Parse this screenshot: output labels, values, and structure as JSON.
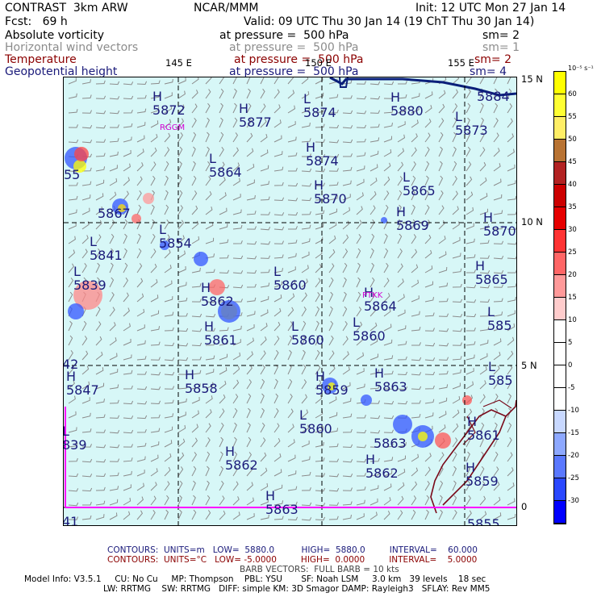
{
  "header": {
    "title_left": "CONTRAST  3km ARW",
    "title_center": "NCAR/MMM",
    "init": "Init: 12 UTC Mon 27 Jan 14",
    "fcst": "Fcst:   69 h",
    "valid": "Valid: 09 UTC Thu 30 Jan 14 (19 ChT Thu 30 Jan 14)"
  },
  "fields": [
    {
      "name": "Absolute vorticity",
      "level": "at pressure =  500 hPa",
      "sm": "sm= 2",
      "color": "#000000"
    },
    {
      "name": "Horizontal wind vectors",
      "level": "at pressure =  500 hPa",
      "sm": "sm= 1",
      "color": "#8c8c8c"
    },
    {
      "name": "Temperature",
      "level": "at pressure =  500 hPa",
      "sm": "sm= 2",
      "color": "#8b0000"
    },
    {
      "name": "Geopotential height",
      "level": "at pressure =  500 hPa",
      "sm": "sm= 4",
      "color": "#1a1a7a"
    }
  ],
  "lon_labels": [
    "145 E",
    "150 E",
    "155 E"
  ],
  "lat_labels": [
    "15 N",
    "10 N",
    "5 N",
    "0"
  ],
  "stations": [
    "RGGM",
    "PTKK"
  ],
  "contours": [
    {
      "t": "H",
      "v": "5872"
    },
    {
      "t": "H",
      "v": "5877"
    },
    {
      "t": "L",
      "v": "5874"
    },
    {
      "t": "H",
      "v": "5880"
    },
    {
      "t": "L",
      "v": "5873"
    },
    {
      "t": "",
      "v": "5884"
    },
    {
      "t": "",
      "v": "55"
    },
    {
      "t": "L",
      "v": "5864"
    },
    {
      "t": "H",
      "v": "5874"
    },
    {
      "t": "L",
      "v": "5865"
    },
    {
      "t": "",
      "v": "5867"
    },
    {
      "t": "H",
      "v": "5870"
    },
    {
      "t": "H",
      "v": "5869"
    },
    {
      "t": "H",
      "v": "5870"
    },
    {
      "t": "L",
      "v": "5854"
    },
    {
      "t": "L",
      "v": "5841"
    },
    {
      "t": "L",
      "v": "5860"
    },
    {
      "t": "H",
      "v": "5865"
    },
    {
      "t": "L",
      "v": "5839"
    },
    {
      "t": "H",
      "v": "5862"
    },
    {
      "t": "H",
      "v": "5864"
    },
    {
      "t": "H",
      "v": "5861"
    },
    {
      "t": "L",
      "v": "5860"
    },
    {
      "t": "L",
      "v": "5860"
    },
    {
      "t": "L",
      "v": "585"
    },
    {
      "t": "",
      "v": "42"
    },
    {
      "t": "H",
      "v": "5847"
    },
    {
      "t": "H",
      "v": "5858"
    },
    {
      "t": "H",
      "v": "5859"
    },
    {
      "t": "H",
      "v": "5863"
    },
    {
      "t": "L",
      "v": "585"
    },
    {
      "t": "L",
      "v": "5860"
    },
    {
      "t": "",
      "v": "5863"
    },
    {
      "t": "H",
      "v": "5861"
    },
    {
      "t": "L",
      "v": "839"
    },
    {
      "t": "H",
      "v": "5862"
    },
    {
      "t": "H",
      "v": "5862"
    },
    {
      "t": "H",
      "v": "5859"
    },
    {
      "t": "",
      "v": "41"
    },
    {
      "t": "H",
      "v": "5863"
    },
    {
      "t": "",
      "v": "5855"
    }
  ],
  "colorbar": {
    "unit": "10⁻⁵ s⁻¹",
    "labels": [
      "60",
      "55",
      "50",
      "45",
      "40",
      "35",
      "30",
      "25",
      "20",
      "15",
      "10",
      "5",
      "0",
      "-5",
      "-10",
      "-15",
      "-20",
      "-25",
      "-30"
    ],
    "colors": [
      "#ffff00",
      "#ffff33",
      "#ffee66",
      "#b87333",
      "#b22222",
      "#cc0000",
      "#e60000",
      "#ff3333",
      "#ff6666",
      "#ff9999",
      "#ffcccc",
      "#ffffff",
      "#ffffff",
      "#ffffff",
      "#ffffff",
      "#c8d8ff",
      "#8da8ff",
      "#5a78ff",
      "#2a48ff",
      "#0000ff"
    ]
  },
  "footer": {
    "contours1": "CONTOURS:  UNITS=m   LOW=  5880.0          HIGH=  5880.0         INTERVAL=    60.000",
    "contours2": "CONTOURS:  UNITS=°C   LOW= -5.0000         HIGH=  0.0000         INTERVAL=    5.0000",
    "barb": "BARB VECTORS:  FULL BARB = 10 kts",
    "model1": "Model Info: V3.5.1     CU: No Cu     MP: Thompson    PBL: YSU       SF: Noah LSM     3.0 km   39 levels    18 sec",
    "model2": "LW: RRTMG    SW: RRTMG   DIFF: simple KM: 3D Smagor DAMP: Rayleigh3   SFLAY: Rev MM5"
  }
}
